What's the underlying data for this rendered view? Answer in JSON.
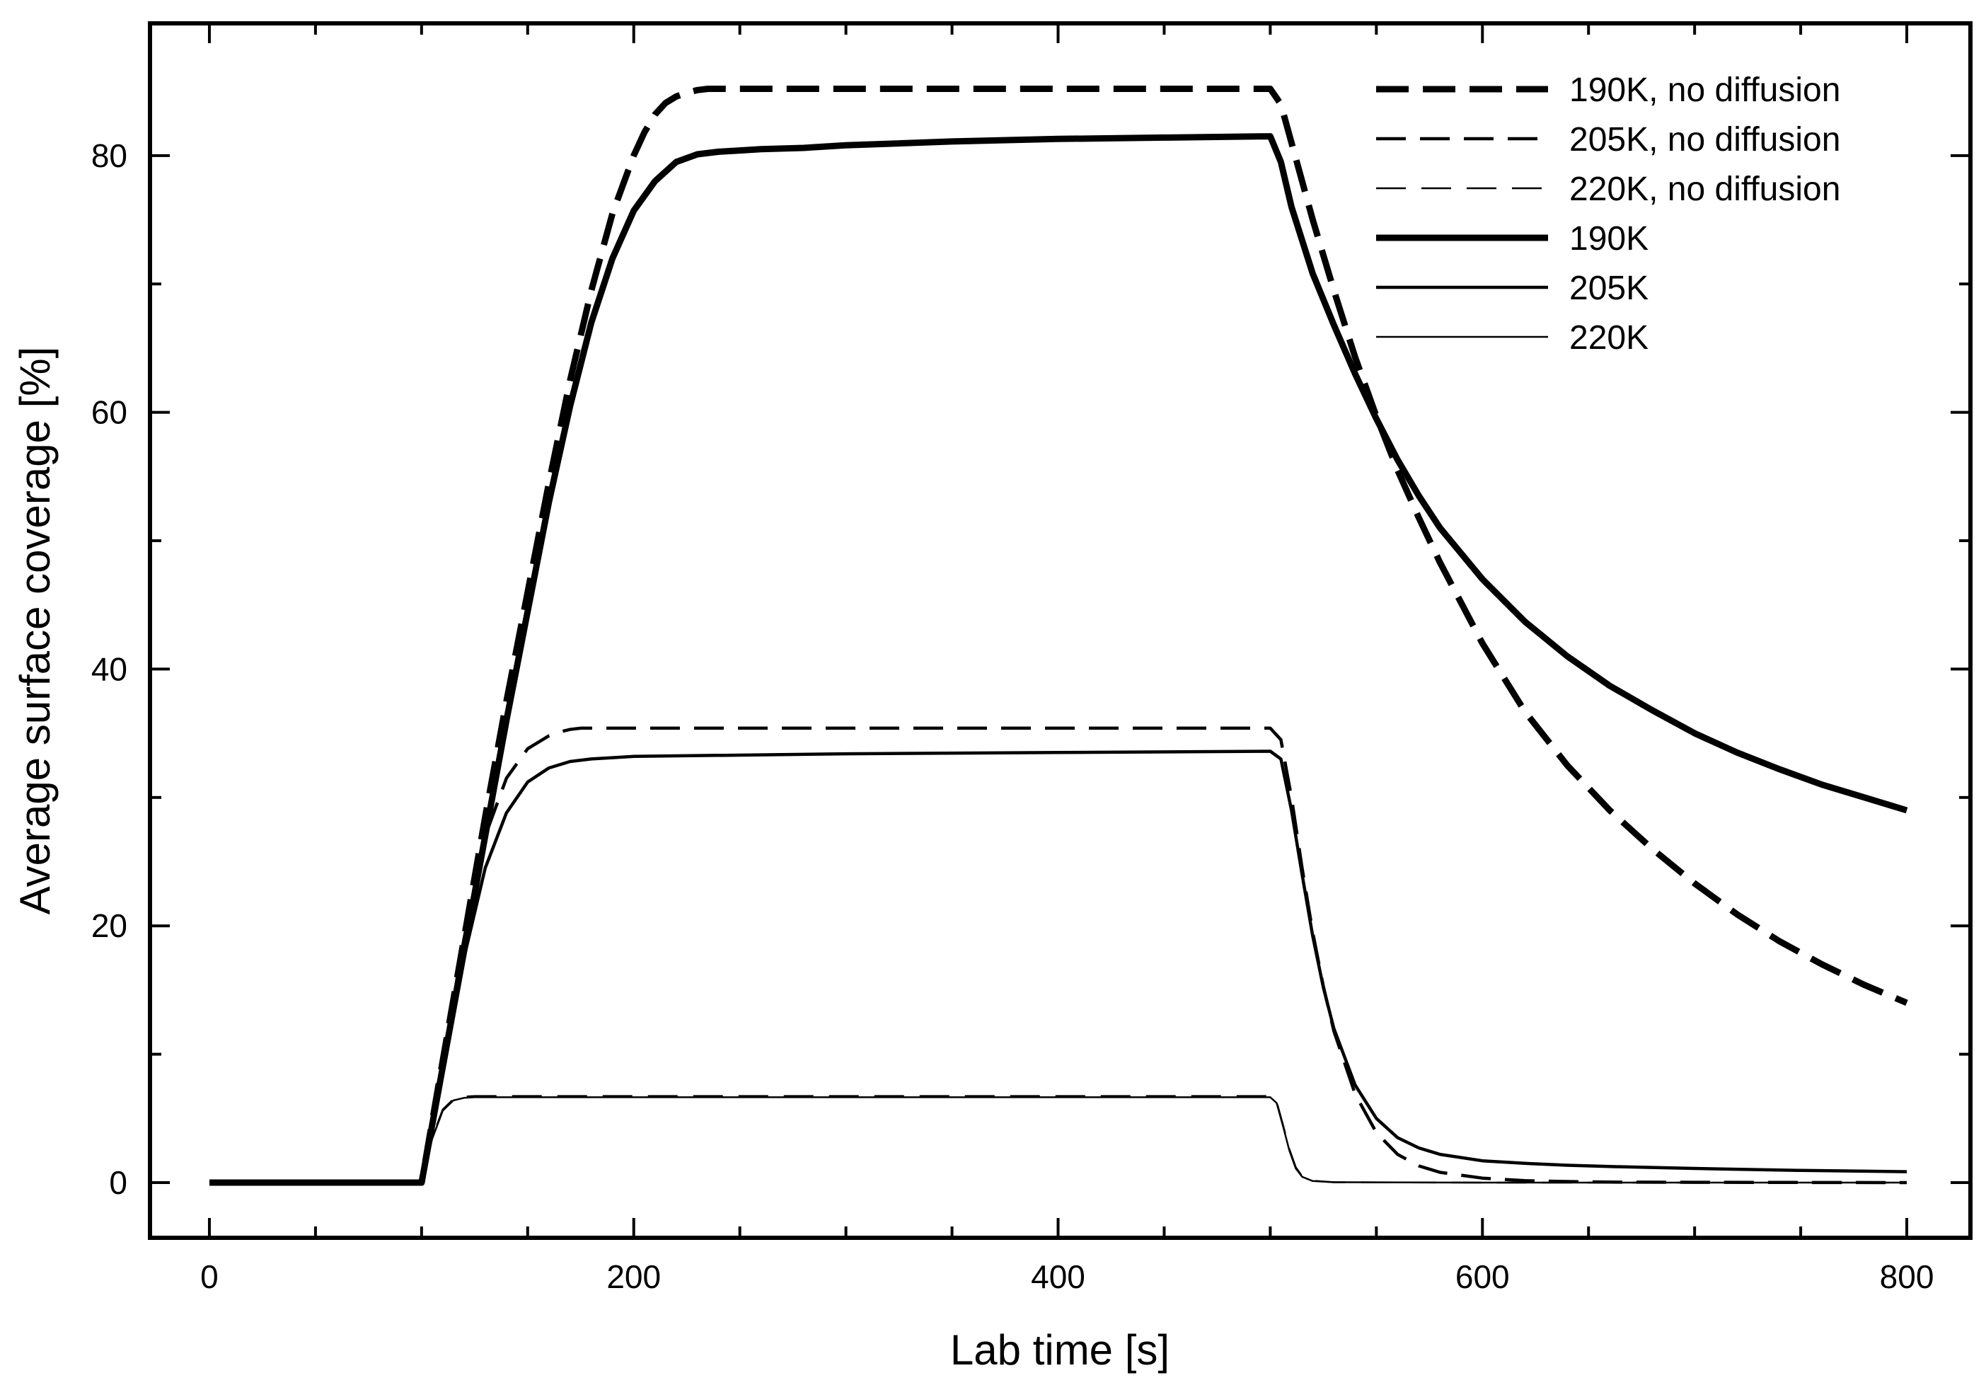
{
  "chart_data": {
    "type": "line",
    "title": "",
    "xlabel": "Lab time [s]",
    "ylabel": "Average surface coverage [%]",
    "xlim": [
      -28,
      830
    ],
    "ylim": [
      -4.3,
      90.3
    ],
    "xticks": [
      0,
      200,
      400,
      600,
      800
    ],
    "xticks_minor_step": 50,
    "yticks": [
      0,
      20,
      40,
      60,
      80
    ],
    "yticks_minor_step": 10,
    "grid": false,
    "legend_position": "top-right",
    "series": [
      {
        "name": "190K, no diffusion",
        "style": "dashed-thick",
        "x": [
          0,
          100,
          110,
          120,
          130,
          140,
          150,
          160,
          170,
          180,
          190,
          200,
          205,
          210,
          215,
          220,
          225,
          230,
          235,
          240,
          250,
          260,
          300,
          400,
          500,
          505,
          510,
          515,
          520,
          530,
          540,
          550,
          560,
          570,
          580,
          600,
          620,
          640,
          660,
          680,
          700,
          720,
          740,
          760,
          780,
          800
        ],
        "y": [
          0,
          0,
          9.5,
          19,
          28.5,
          37.5,
          46,
          54.5,
          62.5,
          69.5,
          75.5,
          80,
          81.8,
          83.2,
          84.1,
          84.6,
          84.9,
          85.1,
          85.2,
          85.2,
          85.2,
          85.2,
          85.2,
          85.2,
          85.2,
          84,
          81,
          78,
          75,
          69.5,
          64.3,
          59.7,
          55.5,
          51.8,
          48.3,
          42,
          36.7,
          32.5,
          29,
          26,
          23.3,
          20.9,
          18.8,
          17,
          15.4,
          14
        ]
      },
      {
        "name": "205K, no diffusion",
        "style": "dashed-medium",
        "x": [
          0,
          100,
          110,
          120,
          130,
          140,
          150,
          160,
          165,
          170,
          175,
          180,
          190,
          200,
          300,
          400,
          500,
          505,
          510,
          515,
          520,
          525,
          530,
          540,
          550,
          560,
          570,
          580,
          600,
          620,
          640,
          660,
          700,
          800
        ],
        "y": [
          0,
          0,
          9.5,
          19,
          27,
          31.5,
          33.8,
          34.8,
          35.1,
          35.3,
          35.4,
          35.4,
          35.4,
          35.4,
          35.4,
          35.4,
          35.4,
          34.5,
          30,
          24.5,
          19.5,
          15.3,
          11.8,
          6.9,
          3.9,
          2.2,
          1.3,
          0.8,
          0.35,
          0.15,
          0.08,
          0.04,
          0.02,
          0
        ]
      },
      {
        "name": "220K, no diffusion",
        "style": "dashed-thin",
        "x": [
          0,
          100,
          105,
          110,
          115,
          120,
          125,
          130,
          140,
          200,
          300,
          400,
          500,
          503,
          506,
          509,
          512,
          515,
          520,
          530,
          600,
          800
        ],
        "y": [
          0,
          0,
          3.5,
          5.7,
          6.5,
          6.7,
          6.75,
          6.75,
          6.75,
          6.75,
          6.75,
          6.75,
          6.75,
          6.3,
          4.5,
          2.6,
          1.2,
          0.5,
          0.15,
          0.03,
          0,
          0
        ]
      },
      {
        "name": "190K",
        "style": "solid-thick",
        "x": [
          0,
          100,
          110,
          120,
          130,
          140,
          150,
          160,
          170,
          180,
          190,
          200,
          210,
          220,
          230,
          240,
          250,
          260,
          280,
          300,
          350,
          400,
          450,
          500,
          505,
          510,
          520,
          530,
          540,
          550,
          560,
          570,
          580,
          600,
          620,
          640,
          660,
          680,
          700,
          720,
          740,
          760,
          780,
          800
        ],
        "y": [
          0,
          0,
          9,
          18,
          27,
          36,
          44.5,
          53,
          60.5,
          67,
          72,
          75.7,
          78,
          79.5,
          80.1,
          80.3,
          80.4,
          80.5,
          80.6,
          80.8,
          81.1,
          81.3,
          81.4,
          81.5,
          79.5,
          76,
          70.8,
          66.8,
          63,
          59.5,
          56.3,
          53.5,
          51,
          47,
          43.7,
          41,
          38.7,
          36.8,
          35,
          33.5,
          32.2,
          31,
          30,
          29
        ]
      },
      {
        "name": "205K",
        "style": "solid-medium",
        "x": [
          0,
          100,
          110,
          120,
          130,
          140,
          150,
          160,
          170,
          180,
          190,
          200,
          300,
          400,
          500,
          505,
          510,
          515,
          520,
          525,
          530,
          540,
          550,
          560,
          570,
          580,
          600,
          620,
          640,
          660,
          700,
          750,
          800
        ],
        "y": [
          0,
          0,
          9,
          17.5,
          24.5,
          28.8,
          31.2,
          32.3,
          32.8,
          33,
          33.1,
          33.2,
          33.4,
          33.5,
          33.6,
          33,
          29,
          24,
          19.2,
          15.2,
          12,
          7.6,
          5,
          3.5,
          2.7,
          2.2,
          1.7,
          1.5,
          1.35,
          1.25,
          1.1,
          0.95,
          0.85
        ]
      },
      {
        "name": "220K",
        "style": "solid-thin",
        "x": [
          0,
          100,
          105,
          110,
          115,
          120,
          125,
          130,
          140,
          200,
          300,
          400,
          500,
          503,
          506,
          509,
          512,
          515,
          520,
          530,
          600,
          800
        ],
        "y": [
          0,
          0,
          3.4,
          5.6,
          6.4,
          6.6,
          6.65,
          6.65,
          6.65,
          6.65,
          6.65,
          6.65,
          6.65,
          6.2,
          4.4,
          2.5,
          1.1,
          0.45,
          0.12,
          0.03,
          0,
          0
        ]
      }
    ]
  }
}
